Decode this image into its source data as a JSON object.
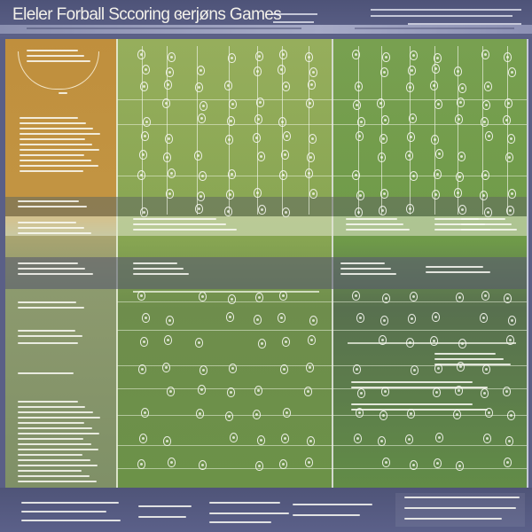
{
  "header": {
    "title": "Eleler Forball Sccoring ɞerjøns Games"
  },
  "colors": {
    "header_bg": "#4e5378",
    "panel_orange": "#c08f3d",
    "field_green": "#87a552",
    "field_dark_green": "#6c9248",
    "band_slate": "#585c6e",
    "footer_bg": "#4f5478",
    "line_white": "#f1f2ea"
  },
  "icons": {
    "player_marker": "player-figure-icon"
  }
}
